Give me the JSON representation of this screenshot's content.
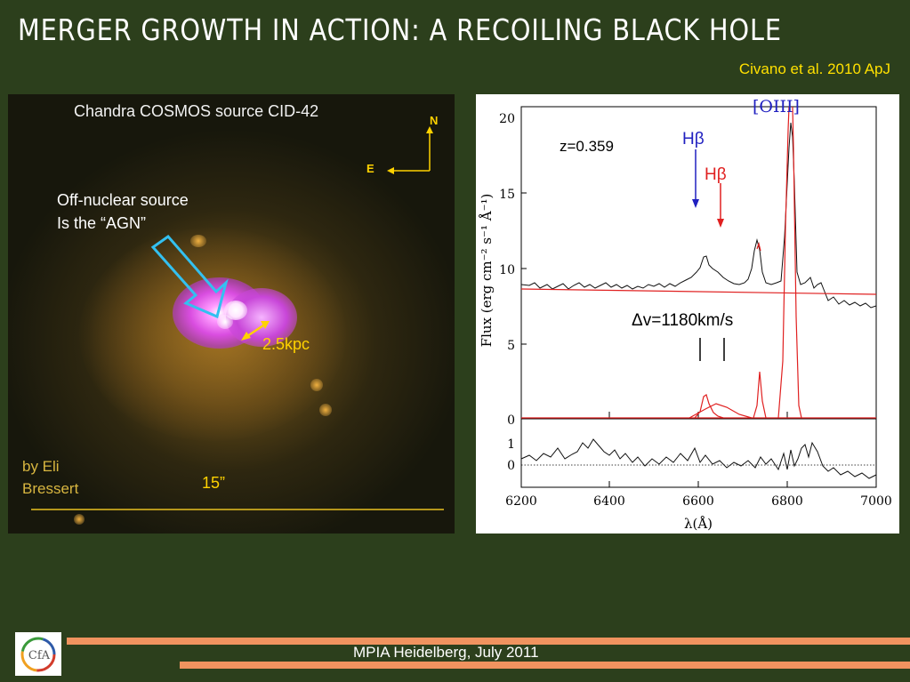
{
  "slide": {
    "title": "Merger growth in action: a recoiling black hole",
    "citation": "Civano et al. 2010 ApJ",
    "footer": "MPIA Heidelberg, July 2011",
    "logo_text": "CfA"
  },
  "image_panel": {
    "caption": "Chandra COSMOS source CID-42",
    "compass": {
      "north": "N",
      "east": "E"
    },
    "annotation_line1": "Off-nuclear source",
    "annotation_line2": "Is the “AGN”",
    "scale_kpc": "2.5kpc",
    "scale_arcsec": "15”",
    "credit_line1": "by Eli",
    "credit_line2": "Bressert",
    "colors": {
      "xray": "#d94de0",
      "optical": "#c88a2a",
      "arrow": "#33c0f0",
      "labels": "#ffd200"
    }
  },
  "spectrum_panel": {
    "redshift_label": "z=0.359",
    "oiii_label": "[OIII]",
    "hbeta_label_blue": "Hβ",
    "hbeta_label_red": "Hβ",
    "dv_label": "Δv=1180km/s",
    "x_axis_label": "λ(Å)",
    "y_axis_label": "Flux (erg cm⁻² s⁻¹ Å⁻¹)",
    "x_ticks": [
      "6200",
      "6400",
      "6600",
      "6800",
      "7000"
    ],
    "y_ticks": [
      "20",
      "15",
      "10",
      "5",
      "0"
    ],
    "residual_ticks": [
      "1",
      "0"
    ],
    "colors": {
      "spectrum": "#111111",
      "model": "#e02020",
      "hbeta_blue": "#2020c0",
      "hbeta_red": "#e02020",
      "oiii": "#2020c0"
    }
  }
}
